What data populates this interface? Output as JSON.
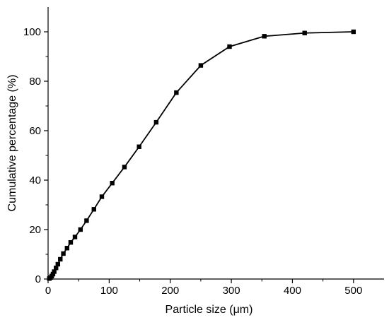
{
  "chart_data": {
    "type": "line",
    "title": "",
    "xlabel": "Particle size (μm)",
    "ylabel": "Cumulative percentage (%)",
    "xlim": [
      0,
      550
    ],
    "ylim": [
      0,
      110
    ],
    "xticks": [
      0,
      100,
      200,
      300,
      400,
      500
    ],
    "yticks": [
      0,
      20,
      40,
      60,
      80,
      100
    ],
    "xtick_labels": [
      "0",
      "100",
      "200",
      "300",
      "400",
      "500"
    ],
    "ytick_labels": [
      "0",
      "20",
      "40",
      "60",
      "80",
      "100"
    ],
    "grid": false,
    "marker": "square",
    "color": "#000000",
    "series": [
      {
        "x": [
          2,
          4,
          6,
          8,
          10,
          13,
          16,
          20,
          25,
          31,
          37,
          44,
          53,
          63,
          75,
          88,
          105,
          125,
          149,
          177,
          210,
          250,
          297,
          354,
          420,
          500
        ],
        "y": [
          0.2,
          0.6,
          1.2,
          2.0,
          3.0,
          4.5,
          6.0,
          8.0,
          10.3,
          12.5,
          14.8,
          17.0,
          20.0,
          23.6,
          28.2,
          33.3,
          38.8,
          45.3,
          53.5,
          63.4,
          75.4,
          86.4,
          94.0,
          98.2,
          99.5,
          100.0
        ]
      }
    ]
  }
}
